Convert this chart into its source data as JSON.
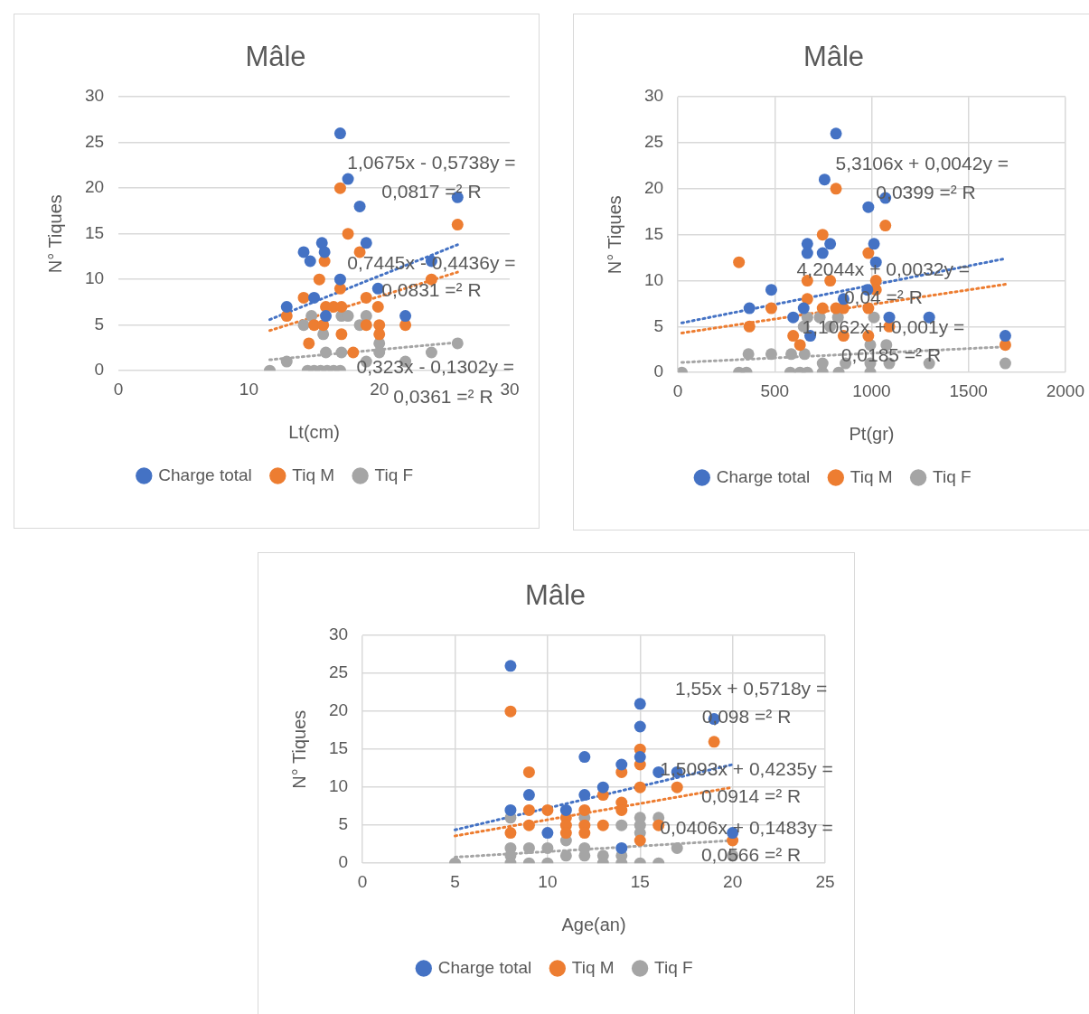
{
  "chart_data": [
    {
      "type": "scatter",
      "title": "Mâle",
      "xlabel": "Lt(cm)",
      "ylabel": "N° Tiques",
      "xlim": [
        0,
        30
      ],
      "xticks": [
        0,
        10,
        20,
        30
      ],
      "ylim": [
        0,
        30
      ],
      "yticks": [
        0,
        5,
        10,
        15,
        20,
        25,
        30
      ],
      "grid": "y",
      "legend": "bottom",
      "marker": "circle",
      "series": [
        {
          "name": "Charge total",
          "color": "#4472c4",
          "x": [
            17,
            17.6,
            18.5,
            19,
            15.6,
            14.2,
            15.8,
            14.7,
            24,
            26,
            17,
            19.9,
            12.9,
            15,
            15.9,
            22
          ],
          "values": [
            26,
            21,
            18,
            14,
            14,
            13,
            13,
            12,
            12,
            19,
            10,
            9,
            7,
            8,
            6,
            6
          ]
        },
        {
          "name": "Tiq M",
          "color": "#ed7d31",
          "x": [
            17,
            17.6,
            18.5,
            15.8,
            15.4,
            17,
            24,
            26,
            14.2,
            15.9,
            16.5,
            17.1,
            19,
            19.9,
            12.9,
            15,
            15.7,
            17.1,
            20,
            20,
            22,
            14.6,
            18,
            19
          ],
          "values": [
            20,
            15,
            13,
            12,
            10,
            9,
            10,
            16,
            8,
            7,
            7,
            7,
            8,
            7,
            6,
            5,
            5,
            4,
            5,
            4,
            5,
            3,
            2,
            5
          ]
        },
        {
          "name": "Tiq F",
          "color": "#a5a5a5",
          "x": [
            11.6,
            12.9,
            14.2,
            14.8,
            15.7,
            17.1,
            17.6,
            19,
            18.5,
            20,
            20,
            15.9,
            17.1,
            24,
            26,
            22,
            19,
            14.5,
            15,
            15.5,
            16,
            16.5,
            17
          ],
          "values": [
            0,
            1,
            5,
            6,
            4,
            6,
            6,
            6,
            5,
            3,
            2,
            2,
            2,
            2,
            3,
            1,
            1,
            0,
            0,
            0,
            0,
            0,
            0
          ]
        },
        {
          "type": "line",
          "color": "#4472c4",
          "line_style": "dotted",
          "marker": "none",
          "x": [
            11.6,
            26
          ],
          "values": [
            5.6,
            13.8
          ]
        },
        {
          "type": "line",
          "color": "#ed7d31",
          "line_style": "dotted",
          "marker": "none",
          "x": [
            11.6,
            26
          ],
          "values": [
            4.4,
            10.8
          ]
        },
        {
          "type": "line",
          "color": "#a5a5a5",
          "line_style": "dotted",
          "marker": "none",
          "x": [
            11.6,
            26
          ],
          "values": [
            1.2,
            3.1
          ]
        }
      ],
      "annotations": [
        "1,0675x - 0,5738y =",
        "0,0817 =² R",
        "0,7445x - 0,4436y =",
        "0,0831 =² R",
        "0,323x - 0,1302y =",
        "0,0361 =² R"
      ]
    },
    {
      "type": "scatter",
      "title": "Mâle",
      "xlabel": "Pt(gr)",
      "ylabel": "N° Tiques",
      "xlim": [
        0,
        2000
      ],
      "xticks": [
        0,
        500,
        1000,
        1500,
        2000
      ],
      "ylim": [
        0,
        30
      ],
      "yticks": [
        0,
        5,
        10,
        15,
        20,
        25,
        30
      ],
      "grid": true,
      "legend": "bottom",
      "marker": "circle",
      "series": [
        {
          "name": "Charge total",
          "color": "#4472c4",
          "x": [
            816,
            757,
            983,
            1071,
            1012,
            668,
            786,
            668,
            747,
            1022,
            482,
            369,
            978,
            649,
            595,
            1091,
            1297,
            1690,
            683,
            855
          ],
          "values": [
            26,
            21,
            18,
            19,
            14,
            14,
            14,
            13,
            13,
            12,
            9,
            7,
            9,
            7,
            6,
            6,
            6,
            4,
            4,
            8
          ]
        },
        {
          "name": "Tiq M",
          "color": "#ed7d31",
          "x": [
            315,
            816,
            1071,
            747,
            983,
            668,
            786,
            1022,
            1022,
            668,
            482,
            747,
            816,
            855,
            983,
            369,
            1091,
            1690,
            595,
            630,
            855,
            983
          ],
          "values": [
            12,
            20,
            16,
            15,
            13,
            10,
            10,
            10,
            9,
            8,
            7,
            7,
            7,
            7,
            7,
            5,
            5,
            3,
            4,
            3,
            4,
            4
          ]
        },
        {
          "name": "Tiq F",
          "color": "#a5a5a5",
          "x": [
            20,
            315,
            354,
            580,
            630,
            668,
            747,
            830,
            993,
            364,
            482,
            585,
            747,
            865,
            993,
            1091,
            1297,
            1690,
            668,
            732,
            826,
            1012,
            649,
            786,
            993,
            1076,
            654
          ],
          "values": [
            0,
            0,
            0,
            0,
            0,
            0,
            0,
            0,
            0,
            2,
            2,
            2,
            1,
            1,
            1,
            1,
            1,
            1,
            6,
            6,
            6,
            6,
            5,
            5,
            3,
            3,
            2
          ]
        },
        {
          "type": "line",
          "color": "#4472c4",
          "line_style": "dotted",
          "marker": "none",
          "x": [
            20,
            1690
          ],
          "values": [
            5.4,
            12.4
          ]
        },
        {
          "type": "line",
          "color": "#ed7d31",
          "line_style": "dotted",
          "marker": "none",
          "x": [
            20,
            1690
          ],
          "values": [
            4.3,
            9.6
          ]
        },
        {
          "type": "line",
          "color": "#a5a5a5",
          "line_style": "dotted",
          "marker": "none",
          "x": [
            20,
            1690
          ],
          "values": [
            1.1,
            2.8
          ]
        }
      ],
      "annotations": [
        "5,3106x + 0,0042y =",
        "0,0399 =² R",
        "4,2044x + 0,0032y =",
        "0,04 =² R",
        "1,1062x + 0,001y =",
        "0,0185 =² R"
      ]
    },
    {
      "type": "scatter",
      "title": "Mâle",
      "xlabel": "Age(an)",
      "ylabel": "N° Tiques",
      "xlim": [
        0,
        25
      ],
      "xticks": [
        0,
        5,
        10,
        15,
        20,
        25
      ],
      "ylim": [
        0,
        30
      ],
      "yticks": [
        0,
        5,
        10,
        15,
        20,
        25,
        30
      ],
      "grid": true,
      "legend": "bottom",
      "marker": "circle",
      "series": [
        {
          "name": "Charge total",
          "color": "#4472c4",
          "x": [
            8,
            8,
            9,
            10,
            11,
            12,
            12,
            13,
            14,
            14,
            15,
            15,
            15,
            16,
            17,
            19,
            20
          ],
          "values": [
            26,
            7,
            9,
            4,
            7,
            14,
            9,
            10,
            13,
            2,
            21,
            18,
            14,
            12,
            12,
            19,
            4
          ]
        },
        {
          "name": "Tiq M",
          "color": "#ed7d31",
          "x": [
            8,
            8,
            9,
            9,
            9,
            10,
            11,
            11,
            11,
            12,
            12,
            12,
            13,
            13,
            14,
            14,
            14,
            15,
            15,
            15,
            15,
            16,
            17,
            19,
            20
          ],
          "values": [
            20,
            4,
            12,
            7,
            5,
            7,
            6,
            5,
            4,
            7,
            5,
            4,
            9,
            5,
            12,
            8,
            7,
            15,
            13,
            10,
            3,
            5,
            10,
            16,
            3
          ]
        },
        {
          "name": "Tiq F",
          "color": "#a5a5a5",
          "x": [
            5,
            8,
            8,
            8,
            8,
            9,
            9,
            10,
            10,
            11,
            11,
            12,
            12,
            12,
            13,
            13,
            14,
            14,
            14,
            15,
            15,
            15,
            15,
            16,
            16,
            17,
            20
          ],
          "values": [
            0,
            6,
            2,
            1,
            0,
            2,
            0,
            2,
            0,
            3,
            1,
            6,
            2,
            1,
            1,
            0,
            5,
            1,
            0,
            6,
            5,
            4,
            0,
            6,
            0,
            2,
            1
          ]
        },
        {
          "type": "line",
          "color": "#4472c4",
          "line_style": "dotted",
          "marker": "none",
          "x": [
            5,
            20
          ],
          "values": [
            4.4,
            13
          ]
        },
        {
          "type": "line",
          "color": "#ed7d31",
          "line_style": "dotted",
          "marker": "none",
          "x": [
            5,
            20
          ],
          "values": [
            3.6,
            10
          ]
        },
        {
          "type": "line",
          "color": "#a5a5a5",
          "line_style": "dotted",
          "marker": "none",
          "x": [
            5,
            20
          ],
          "values": [
            0.8,
            3
          ]
        }
      ],
      "annotations": [
        "1,55x + 0,5718y =",
        "0,098 =² R",
        "1,5093x + 0,4235y =",
        "0,0914 =² R",
        "0,0406x + 0,1483y =",
        "0,0566 =² R"
      ]
    }
  ]
}
